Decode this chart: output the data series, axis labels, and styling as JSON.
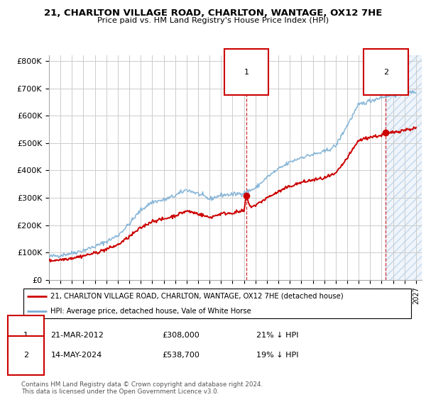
{
  "title": "21, CHARLTON VILLAGE ROAD, CHARLTON, WANTAGE, OX12 7HE",
  "subtitle": "Price paid vs. HM Land Registry's House Price Index (HPI)",
  "ylim": [
    0,
    820000
  ],
  "yticks": [
    0,
    100000,
    200000,
    300000,
    400000,
    500000,
    600000,
    700000,
    800000
  ],
  "ytick_labels": [
    "£0",
    "£100K",
    "£200K",
    "£300K",
    "£400K",
    "£500K",
    "£600K",
    "£700K",
    "£800K"
  ],
  "xlim_start": 1995.0,
  "xlim_end": 2027.5,
  "hpi_color": "#7aaed4",
  "price_color": "#cc0000",
  "marker1_date": 2012.22,
  "marker1_price": 308000,
  "marker1_label": "21-MAR-2012",
  "marker1_amount": "£308,000",
  "marker1_note": "21% ↓ HPI",
  "marker2_date": 2024.37,
  "marker2_price": 538700,
  "marker2_label": "14-MAY-2024",
  "marker2_amount": "£538,700",
  "marker2_note": "19% ↓ HPI",
  "legend_line1": "21, CHARLTON VILLAGE ROAD, CHARLTON, WANTAGE, OX12 7HE (detached house)",
  "legend_line2": "HPI: Average price, detached house, Vale of White Horse",
  "footnote": "Contains HM Land Registry data © Crown copyright and database right 2024.\nThis data is licensed under the Open Government Licence v3.0.",
  "shaded_region_start": 2024.37,
  "background_color": "#ffffff",
  "grid_color": "#cccccc"
}
